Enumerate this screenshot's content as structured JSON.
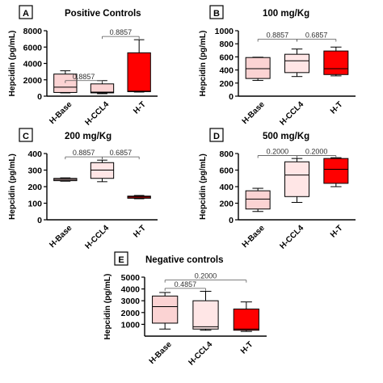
{
  "chart_data": [
    {
      "panel": "A",
      "type": "box",
      "title": "Positive Controls",
      "ylabel": "Hepcidin (pg/mL)",
      "ylim": [
        0,
        8000
      ],
      "yticks": [
        "0",
        "2000",
        "4000",
        "6000",
        "8000"
      ],
      "categories": [
        "H-Base",
        "H-CCL4",
        "H-T"
      ],
      "boxes": [
        {
          "min": 400,
          "q1": 450,
          "median": 1100,
          "q3": 2700,
          "max": 3100,
          "color": "#fbd3d3"
        },
        {
          "min": 300,
          "q1": 400,
          "median": 500,
          "q3": 1500,
          "max": 1900,
          "color": "#fbd3d3"
        },
        {
          "min": 500,
          "q1": 550,
          "median": 600,
          "q3": 5300,
          "max": 6900,
          "color": "#ff0000"
        }
      ],
      "comparisons": [
        {
          "from": 0,
          "to": 1,
          "label": "0.8857",
          "y": 1900
        },
        {
          "from": 1,
          "to": 2,
          "label": "0.8857",
          "y": 7300
        }
      ]
    },
    {
      "panel": "B",
      "type": "box",
      "title": "100 mg/Kg",
      "ylabel": "Hepcidin (pg/mL)",
      "ylim": [
        0,
        1000
      ],
      "yticks": [
        "0",
        "200",
        "400",
        "600",
        "800",
        "1000"
      ],
      "categories": [
        "H-Base",
        "H-CCL4",
        "H-T"
      ],
      "boxes": [
        {
          "min": 240,
          "q1": 270,
          "median": 420,
          "q3": 590,
          "max": 595,
          "color": "#fbd3d3"
        },
        {
          "min": 300,
          "q1": 360,
          "median": 540,
          "q3": 640,
          "max": 720,
          "color": "#ffe6e6"
        },
        {
          "min": 310,
          "q1": 330,
          "median": 420,
          "q3": 690,
          "max": 750,
          "color": "#ff0000"
        }
      ],
      "comparisons": [
        {
          "from": 0,
          "to": 1,
          "label": "0.8857",
          "y": 870
        },
        {
          "from": 1,
          "to": 2,
          "label": "0.6857",
          "y": 870
        }
      ]
    },
    {
      "panel": "C",
      "type": "box",
      "title": "200 mg/Kg",
      "ylabel": "Hepcidin (pg/mL)",
      "ylim": [
        0,
        400
      ],
      "yticks": [
        "0",
        "100",
        "200",
        "300",
        "400"
      ],
      "categories": [
        "H-Base",
        "H-CCL4",
        "H-T"
      ],
      "boxes": [
        {
          "min": 233,
          "q1": 236,
          "median": 243,
          "q3": 250,
          "max": 253,
          "color": "#fbd3d3"
        },
        {
          "min": 230,
          "q1": 250,
          "median": 300,
          "q3": 345,
          "max": 360,
          "color": "#ffe6e6"
        },
        {
          "min": 127,
          "q1": 130,
          "median": 137,
          "q3": 143,
          "max": 147,
          "color": "#ff0000"
        }
      ],
      "comparisons": [
        {
          "from": 0,
          "to": 1,
          "label": "0.8857",
          "y": 380
        },
        {
          "from": 1,
          "to": 2,
          "label": "0.6857",
          "y": 380
        }
      ]
    },
    {
      "panel": "D",
      "type": "box",
      "title": "500 mg/Kg",
      "ylabel": "Hepcidin (pg/mL)",
      "ylim": [
        0,
        800
      ],
      "yticks": [
        "0",
        "200",
        "400",
        "600",
        "800"
      ],
      "categories": [
        "H-Base",
        "H-CCL4",
        "H-T"
      ],
      "boxes": [
        {
          "min": 100,
          "q1": 130,
          "median": 250,
          "q3": 350,
          "max": 380,
          "color": "#fbd3d3"
        },
        {
          "min": 210,
          "q1": 280,
          "median": 540,
          "q3": 700,
          "max": 740,
          "color": "#ffe6e6"
        },
        {
          "min": 400,
          "q1": 440,
          "median": 610,
          "q3": 740,
          "max": 750,
          "color": "#ff0000"
        }
      ],
      "comparisons": [
        {
          "from": 0,
          "to": 1,
          "label": "0.2000",
          "y": 775
        },
        {
          "from": 1,
          "to": 2,
          "label": "0.2000",
          "y": 775
        }
      ]
    },
    {
      "panel": "E",
      "type": "box",
      "title": "Negative controls",
      "ylabel": "Hepcidin (pg/mL)",
      "ylim": [
        0,
        5000
      ],
      "yticks": [
        "1000",
        "2000",
        "3000",
        "4000",
        "5000"
      ],
      "categories": [
        "H-Base",
        "H-CCL4",
        "H-T"
      ],
      "boxes": [
        {
          "min": 600,
          "q1": 1100,
          "median": 2500,
          "q3": 3400,
          "max": 3700,
          "color": "#fbd3d3"
        },
        {
          "min": 500,
          "q1": 600,
          "median": 800,
          "q3": 3000,
          "max": 3800,
          "color": "#ffe6e6"
        },
        {
          "min": 400,
          "q1": 500,
          "median": 600,
          "q3": 2300,
          "max": 2900,
          "color": "#ff0000"
        }
      ],
      "comparisons": [
        {
          "from": 0,
          "to": 1,
          "label": "0.4857",
          "y": 4050
        },
        {
          "from": 0,
          "to": 2,
          "label": "0.2000",
          "y": 4750
        }
      ]
    }
  ]
}
